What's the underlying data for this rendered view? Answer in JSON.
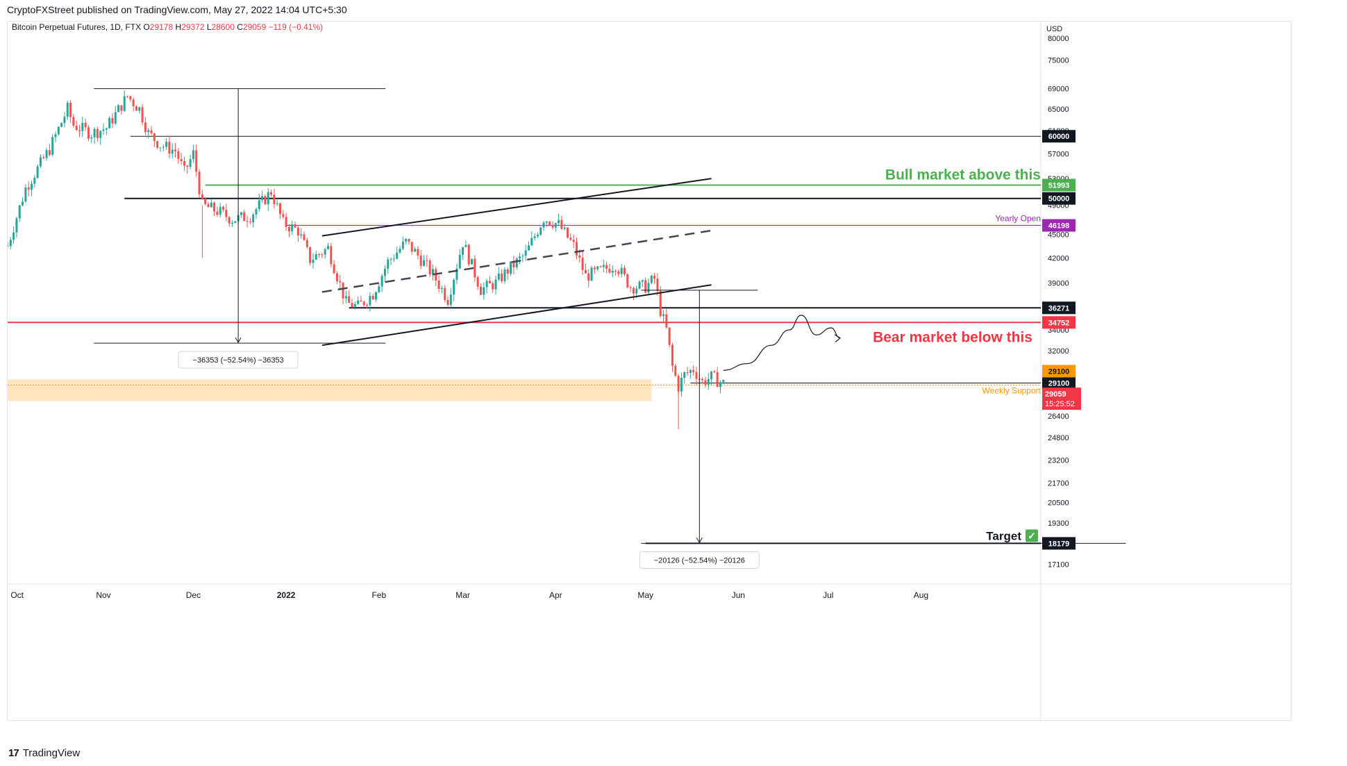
{
  "header": {
    "published_by": "CryptoFXStreet published on TradingView.com, May 27, 2022 14:04 UTC+5:30"
  },
  "chart_data": {
    "type": "candlestick",
    "instrument": "Bitcoin Perpetual Futures, 1D, FTX",
    "ohlc": {
      "o_label": "O",
      "o": "29178",
      "h_label": "H",
      "h": "29372",
      "l_label": "L",
      "l": "28600",
      "c_label": "C",
      "c": "29059",
      "change": "−119 (−0.41%)"
    },
    "currency": "USD",
    "y_scale": "log",
    "ylim": [
      16200,
      84000
    ],
    "xlim": [
      "2021-09-30",
      "2022-09-10"
    ],
    "y_ticks": [
      80000,
      75000,
      69000,
      65000,
      61000,
      57000,
      53000,
      49000,
      45000,
      42000,
      39000,
      34000,
      32000,
      28000,
      26400,
      24800,
      23200,
      21700,
      20500,
      19300,
      17100
    ],
    "x_ticks": [
      {
        "label": "Oct",
        "date": "2021-10-01"
      },
      {
        "label": "Nov",
        "date": "2021-11-01"
      },
      {
        "label": "Dec",
        "date": "2021-12-01"
      },
      {
        "label": "2022",
        "date": "2022-01-01"
      },
      {
        "label": "Feb",
        "date": "2022-02-01"
      },
      {
        "label": "Mar",
        "date": "2022-03-01"
      },
      {
        "label": "Apr",
        "date": "2022-04-01"
      },
      {
        "label": "May",
        "date": "2022-05-01"
      },
      {
        "label": "Jun",
        "date": "2022-06-01"
      },
      {
        "label": "Jul",
        "date": "2022-07-01"
      },
      {
        "label": "Aug",
        "date": "2022-08-01"
      }
    ],
    "price_path": [
      [
        "2021-09-30",
        43500
      ],
      [
        "2021-10-06",
        51500
      ],
      [
        "2021-10-14",
        57800
      ],
      [
        "2021-10-20",
        65000
      ],
      [
        "2021-10-22",
        62000
      ],
      [
        "2021-10-28",
        60500
      ],
      [
        "2021-11-02",
        61500
      ],
      [
        "2021-11-09",
        67500
      ],
      [
        "2021-11-13",
        65000
      ],
      [
        "2021-11-16",
        60500
      ],
      [
        "2021-11-20",
        58500
      ],
      [
        "2021-11-25",
        57500
      ],
      [
        "2021-11-28",
        54000
      ],
      [
        "2021-12-01",
        57000
      ],
      [
        "2021-12-04",
        49000
      ],
      [
        "2021-12-10",
        48000
      ],
      [
        "2021-12-14",
        47000
      ],
      [
        "2021-12-20",
        47500
      ],
      [
        "2021-12-27",
        51000
      ],
      [
        "2021-12-31",
        46500
      ],
      [
        "2022-01-05",
        45500
      ],
      [
        "2022-01-09",
        41800
      ],
      [
        "2022-01-15",
        43200
      ],
      [
        "2022-01-21",
        36800
      ],
      [
        "2022-01-25",
        36400
      ],
      [
        "2022-01-30",
        37800
      ],
      [
        "2022-02-04",
        41500
      ],
      [
        "2022-02-10",
        44000
      ],
      [
        "2022-02-14",
        42300
      ],
      [
        "2022-02-19",
        40000
      ],
      [
        "2022-02-24",
        37200
      ],
      [
        "2022-03-01",
        44000
      ],
      [
        "2022-03-07",
        38300
      ],
      [
        "2022-03-12",
        39000
      ],
      [
        "2022-03-16",
        40500
      ],
      [
        "2022-03-22",
        42500
      ],
      [
        "2022-03-28",
        47200
      ],
      [
        "2022-04-02",
        46300
      ],
      [
        "2022-04-07",
        43500
      ],
      [
        "2022-04-11",
        39800
      ],
      [
        "2022-04-16",
        40400
      ],
      [
        "2022-04-21",
        41200
      ],
      [
        "2022-04-26",
        38600
      ],
      [
        "2022-05-01",
        38600
      ],
      [
        "2022-05-04",
        39500
      ],
      [
        "2022-05-06",
        36000
      ],
      [
        "2022-05-08",
        34000
      ],
      [
        "2022-05-10",
        30500
      ],
      [
        "2022-05-12",
        28800
      ],
      [
        "2022-05-14",
        29800
      ],
      [
        "2022-05-17",
        30300
      ],
      [
        "2022-05-20",
        29200
      ],
      [
        "2022-05-23",
        29600
      ],
      [
        "2022-05-26",
        29200
      ],
      [
        "2022-05-27",
        29059
      ]
    ],
    "projected_path": [
      [
        "2022-05-27",
        30200
      ],
      [
        "2022-06-04",
        30800
      ],
      [
        "2022-06-12",
        32500
      ],
      [
        "2022-06-18",
        34000
      ],
      [
        "2022-06-22",
        35500
      ],
      [
        "2022-06-27",
        33500
      ],
      [
        "2022-07-02",
        34200
      ],
      [
        "2022-07-05",
        33200
      ]
    ],
    "horizontal_levels": [
      {
        "price": 60000,
        "label": "60000",
        "color": "#131722",
        "from": "2021-11-10"
      },
      {
        "price": 51993,
        "label": "51993",
        "color": "#4caf50",
        "from": "2021-12-05",
        "text": "Bull market above this"
      },
      {
        "price": 50000,
        "label": "50000",
        "color": "#131722",
        "from": "2021-11-08"
      },
      {
        "price": 46198,
        "label": "46198",
        "color": "#9c27b0",
        "from": "2022-01-01",
        "text": "Yearly Open"
      },
      {
        "price": 36271,
        "label": "36271",
        "color": "#131722",
        "from": "2022-01-22"
      },
      {
        "price": 34752,
        "label": "34752",
        "color": "#f23645",
        "from": "2021-09-30",
        "text": "Bear market below this"
      },
      {
        "price": 29100,
        "label": "29100",
        "color": "#131722",
        "from": "2022-05-16"
      },
      {
        "price": 18179,
        "label": "18179",
        "color": "#131722",
        "from": "2022-05-01",
        "text": "Target"
      }
    ],
    "weekly_support": {
      "price": 29100,
      "label": "29100",
      "text": "Weekly Support",
      "color": "#ff9800"
    },
    "last_price": {
      "label": "29059",
      "countdown": "15:25:52",
      "color": "#f23645"
    },
    "measured_moves": [
      {
        "label": "−36353 (−52.54%) −36353",
        "from_price": 69000,
        "to_price": 32700,
        "date": "2021-12-16"
      },
      {
        "label": "−20126 (−52.54%) −20126",
        "from_price": 38200,
        "to_price": 18179,
        "date": "2022-05-19"
      }
    ],
    "target_check": "✓",
    "channel": {
      "upper": [
        [
          "2022-01-13",
          44800
        ],
        [
          "2022-05-23",
          53000
        ]
      ],
      "middle": [
        [
          "2022-01-13",
          38000
        ],
        [
          "2022-05-23",
          45500
        ]
      ],
      "lower": [
        [
          "2022-01-13",
          32500
        ],
        [
          "2022-05-23",
          38800
        ]
      ]
    }
  },
  "footer": {
    "logo": "17",
    "brand": "TradingView"
  },
  "colors": {
    "up": "#26a69a",
    "down": "#ef5350",
    "bull": "#4caf50",
    "bear": "#f23645",
    "yearly": "#9c27b0",
    "support": "#ff9800"
  }
}
